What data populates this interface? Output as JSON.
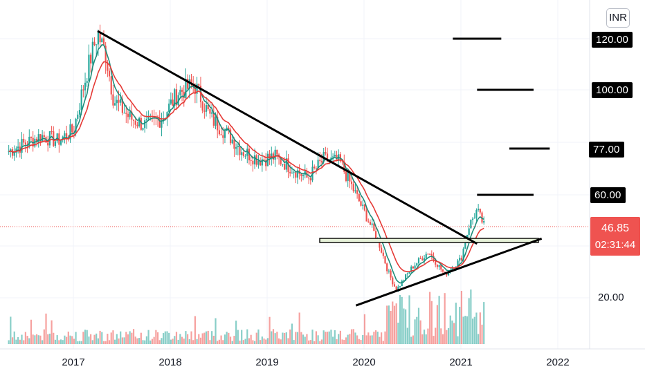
{
  "currency": "INR",
  "last_price": "46.85",
  "countdown": "02:31:44",
  "price_tags": [
    "120.00",
    "100.00",
    "77.00",
    "60.00"
  ],
  "plain_ticks": [
    "20.00"
  ],
  "years": [
    "2017",
    "2018",
    "2019",
    "2020",
    "2021",
    "2022"
  ],
  "colors": {
    "up": "#26a69a",
    "down": "#ef5350",
    "ema_fast": "#1e8c7a",
    "ema_slow": "#e53935",
    "trendline": "#000000",
    "zone": "#e6f1d8"
  },
  "chart_data": {
    "type": "candlestick",
    "x_range": [
      "2016-05",
      "2022-06"
    ],
    "y_range": [
      5,
      135
    ],
    "grid": true,
    "close_series": [
      [
        "2016-05",
        76
      ],
      [
        "2016-07",
        79
      ],
      [
        "2016-09",
        82
      ],
      [
        "2016-11",
        80
      ],
      [
        "2017-01",
        84
      ],
      [
        "2017-02",
        98
      ],
      [
        "2017-03",
        111
      ],
      [
        "2017-04",
        122
      ],
      [
        "2017-05",
        114
      ],
      [
        "2017-06",
        96
      ],
      [
        "2017-08",
        89
      ],
      [
        "2017-10",
        86
      ],
      [
        "2017-12",
        89
      ],
      [
        "2018-02",
        99
      ],
      [
        "2018-04",
        102
      ],
      [
        "2018-06",
        89
      ],
      [
        "2018-08",
        83
      ],
      [
        "2018-10",
        76
      ],
      [
        "2018-12",
        73
      ],
      [
        "2019-02",
        74
      ],
      [
        "2019-04",
        70
      ],
      [
        "2019-06",
        66
      ],
      [
        "2019-08",
        73
      ],
      [
        "2019-10",
        72
      ],
      [
        "2019-12",
        60
      ],
      [
        "2020-02",
        47
      ],
      [
        "2020-03",
        40
      ],
      [
        "2020-04",
        30
      ],
      [
        "2020-05",
        23
      ],
      [
        "2020-07",
        32
      ],
      [
        "2020-09",
        38
      ],
      [
        "2020-11",
        29
      ],
      [
        "2021-01",
        35
      ],
      [
        "2021-02",
        48
      ],
      [
        "2021-03",
        54
      ],
      [
        "2021-04",
        47
      ]
    ],
    "trendlines": [
      {
        "from": [
          "2017-04",
          123
        ],
        "to": [
          "2021-03",
          41
        ]
      },
      {
        "from": [
          "2019-12",
          17
        ],
        "to": [
          "2021-11",
          43
        ]
      },
      {
        "from": [
          "2021-03",
          100
        ],
        "to": [
          "2021-10",
          100
        ]
      },
      {
        "from": [
          "2020-12",
          120
        ],
        "to": [
          "2021-06",
          120
        ]
      },
      {
        "from": [
          "2021-07",
          77
        ],
        "to": [
          "2021-12",
          77
        ]
      },
      {
        "from": [
          "2021-03",
          60
        ],
        "to": [
          "2021-10",
          60
        ]
      }
    ],
    "zone": {
      "from": "2019-09",
      "to": "2021-11",
      "low": 42,
      "high": 44
    }
  }
}
